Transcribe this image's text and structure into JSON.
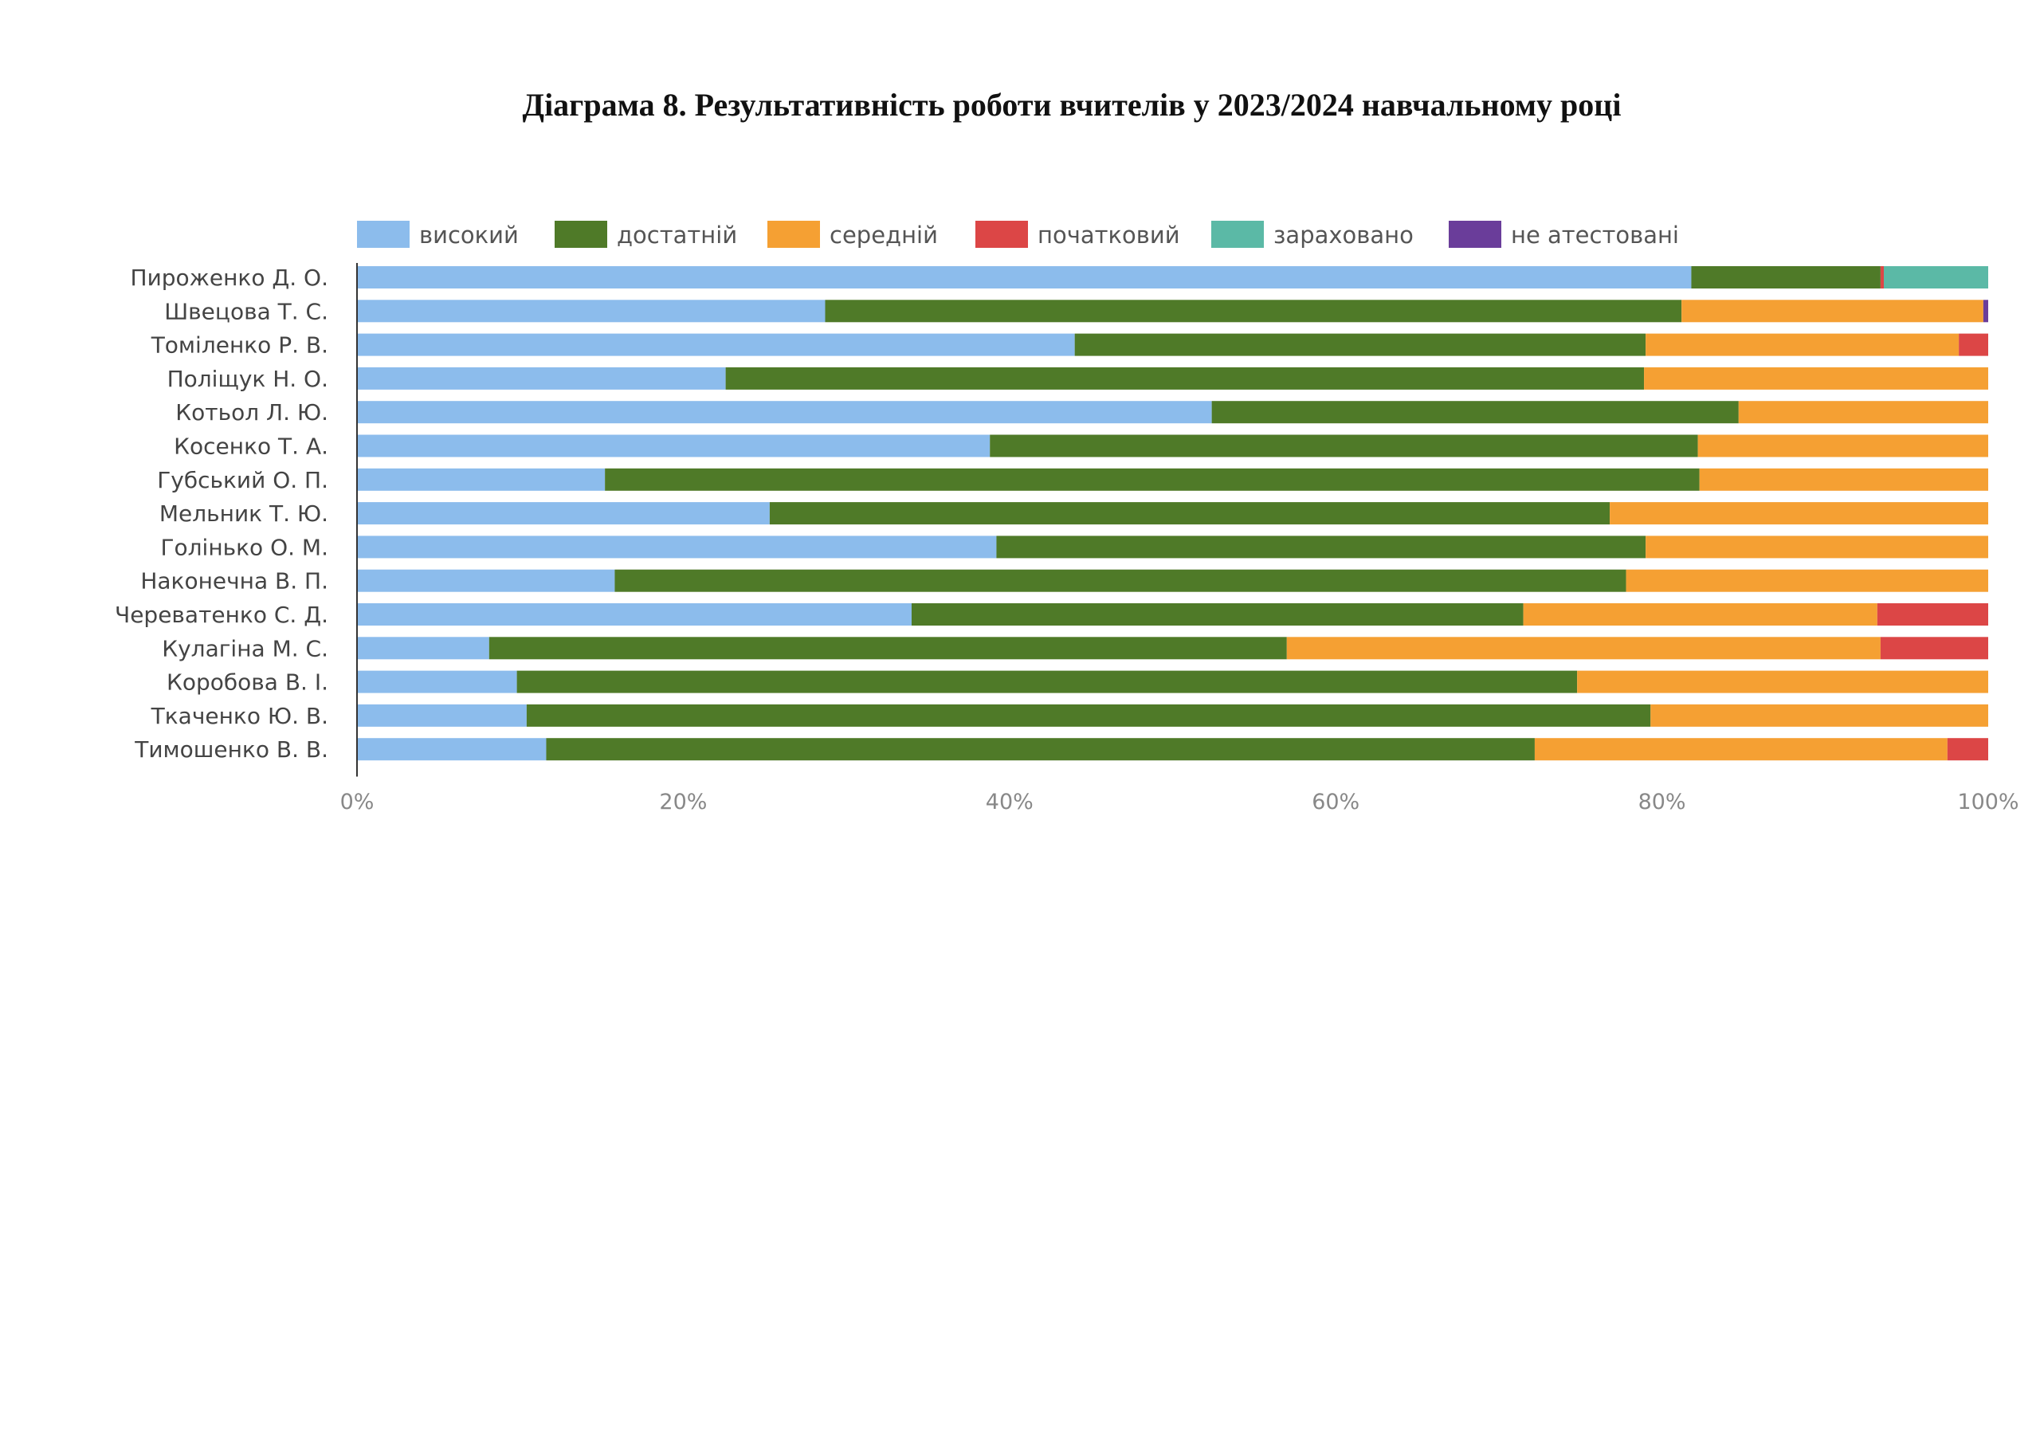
{
  "title": "Діаграма 8. Результативність роботи вчителів у 2023/2024 навчальному році",
  "chart_data": {
    "type": "bar",
    "orientation": "horizontal",
    "stacked": true,
    "percent_stacked": true,
    "xlim": [
      0,
      100
    ],
    "x_ticks": [
      "0%",
      "20%",
      "40%",
      "60%",
      "80%",
      "100%"
    ],
    "legend_position": "top",
    "grid": false,
    "categories": [
      "Пироженко Д. О.",
      "Швецова Т. С.",
      "Томіленко Р. В.",
      "Поліщук Н. О.",
      "Котьол Л. Ю.",
      "Косенко Т. А.",
      "Губський О. П.",
      "Мельник Т. Ю.",
      "Голінько О. М.",
      "Наконечна В. П.",
      "Череватенко С. Д.",
      "Кулагіна М. С.",
      "Коробова В. І.",
      "Ткаченко Ю. В.",
      "Тимошенко В. В."
    ],
    "series": [
      {
        "name": "високий",
        "color": "#8cbcec",
        "values": [
          81.8,
          28.7,
          44.0,
          22.6,
          52.4,
          38.8,
          15.2,
          25.3,
          39.2,
          15.8,
          34.0,
          8.1,
          9.8,
          10.4,
          11.6
        ]
      },
      {
        "name": "достатній",
        "color": "#4f7a28",
        "values": [
          11.6,
          52.5,
          35.0,
          56.3,
          32.3,
          43.4,
          67.1,
          51.5,
          39.8,
          62.0,
          37.5,
          48.9,
          65.0,
          68.9,
          60.6
        ]
      },
      {
        "name": "середній",
        "color": "#f5a033",
        "values": [
          0,
          18.5,
          19.2,
          21.1,
          15.3,
          17.8,
          17.7,
          23.2,
          21.0,
          22.2,
          21.7,
          36.4,
          25.2,
          20.7,
          25.3
        ]
      },
      {
        "name": "початковий",
        "color": "#dc4646",
        "values": [
          0.2,
          0,
          1.8,
          0,
          0,
          0,
          0,
          0,
          0,
          0,
          6.8,
          6.6,
          0,
          0,
          2.5
        ]
      },
      {
        "name": "зараховано",
        "color": "#5bb9a6",
        "values": [
          6.4,
          0,
          0,
          0,
          0,
          0,
          0,
          0,
          0,
          0,
          0,
          0,
          0,
          0,
          0
        ]
      },
      {
        "name": "не атестовані",
        "color": "#6a3d9a",
        "values": [
          0,
          0.3,
          0,
          0,
          0,
          0,
          0,
          0,
          0,
          0,
          0,
          0,
          0,
          0,
          0
        ]
      }
    ]
  }
}
